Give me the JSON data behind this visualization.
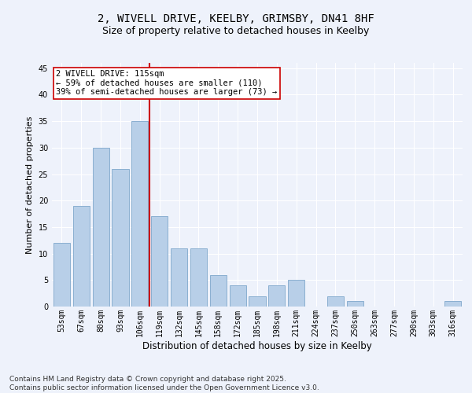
{
  "title1": "2, WIVELL DRIVE, KEELBY, GRIMSBY, DN41 8HF",
  "title2": "Size of property relative to detached houses in Keelby",
  "xlabel": "Distribution of detached houses by size in Keelby",
  "ylabel": "Number of detached properties",
  "categories": [
    "53sqm",
    "67sqm",
    "80sqm",
    "93sqm",
    "106sqm",
    "119sqm",
    "132sqm",
    "145sqm",
    "158sqm",
    "172sqm",
    "185sqm",
    "198sqm",
    "211sqm",
    "224sqm",
    "237sqm",
    "250sqm",
    "263sqm",
    "277sqm",
    "290sqm",
    "303sqm",
    "316sqm"
  ],
  "values": [
    12,
    19,
    30,
    26,
    35,
    17,
    11,
    11,
    6,
    4,
    2,
    4,
    5,
    0,
    2,
    1,
    0,
    0,
    0,
    0,
    1
  ],
  "bar_color": "#b8cfe8",
  "bar_edge_color": "#8aafd0",
  "vline_index": 5,
  "vline_color": "#cc0000",
  "annotation_text": "2 WIVELL DRIVE: 115sqm\n← 59% of detached houses are smaller (110)\n39% of semi-detached houses are larger (73) →",
  "annotation_box_color": "white",
  "annotation_box_edge_color": "#cc0000",
  "ylim": [
    0,
    46
  ],
  "yticks": [
    0,
    5,
    10,
    15,
    20,
    25,
    30,
    35,
    40,
    45
  ],
  "bg_color": "#eef2fb",
  "footer": "Contains HM Land Registry data © Crown copyright and database right 2025.\nContains public sector information licensed under the Open Government Licence v3.0.",
  "title1_fontsize": 10,
  "title2_fontsize": 9,
  "xlabel_fontsize": 8.5,
  "ylabel_fontsize": 8,
  "annotation_fontsize": 7.5,
  "footer_fontsize": 6.5,
  "tick_fontsize": 7
}
